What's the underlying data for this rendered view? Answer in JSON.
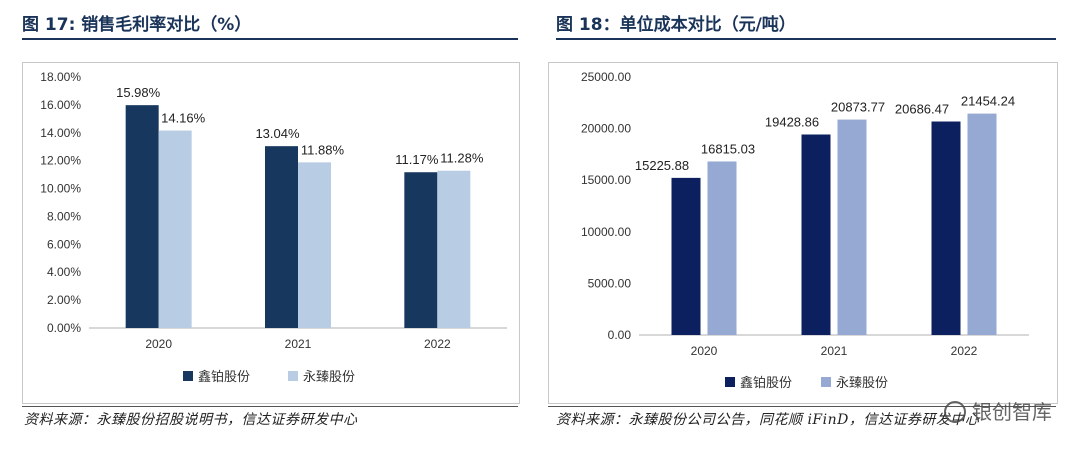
{
  "left": {
    "title": "图 17: 销售毛利率对比（%）",
    "source": "资料来源：永臻股份招股说明书，信达证券研发中心",
    "chart_data": {
      "type": "bar",
      "title": "",
      "categories": [
        "2020",
        "2021",
        "2022"
      ],
      "series": [
        {
          "name": "鑫铂股份",
          "values": [
            15.98,
            13.04,
            11.17
          ],
          "labels": [
            "15.98%",
            "13.04%",
            "11.17%"
          ],
          "color": "#17375e"
        },
        {
          "name": "永臻股份",
          "values": [
            14.16,
            11.88,
            11.28
          ],
          "labels": [
            "14.16%",
            "11.88%",
            "11.28%"
          ],
          "color": "#b8cce4"
        }
      ],
      "ylim": [
        0,
        18
      ],
      "yticks": [
        0,
        2,
        4,
        6,
        8,
        10,
        12,
        14,
        16,
        18
      ],
      "ytick_labels": [
        "0.00%",
        "2.00%",
        "4.00%",
        "6.00%",
        "8.00%",
        "10.00%",
        "12.00%",
        "14.00%",
        "16.00%",
        "18.00%"
      ],
      "xlabel": "",
      "ylabel": "",
      "grid": false,
      "legend": "bottom"
    }
  },
  "right": {
    "title": "图 18：单位成本对比（元/吨）",
    "source": "资料来源：永臻股份公司公告，同花顺 iFinD，信达证券研发中心",
    "chart_data": {
      "type": "bar",
      "title": "",
      "categories": [
        "2020",
        "2021",
        "2022"
      ],
      "series": [
        {
          "name": "鑫铂股份",
          "values": [
            15225.88,
            19428.86,
            20686.47
          ],
          "labels": [
            "15225.88",
            "19428.86",
            "20686.47"
          ],
          "color": "#0c1f5e"
        },
        {
          "name": "永臻股份",
          "values": [
            16815.03,
            20873.77,
            21454.24
          ],
          "labels": [
            "16815.03",
            "20873.77",
            "21454.24"
          ],
          "color": "#95a9d2"
        }
      ],
      "ylim": [
        0,
        25000
      ],
      "yticks": [
        0,
        5000,
        10000,
        15000,
        20000,
        25000
      ],
      "ytick_labels": [
        "0.00",
        "5000.00",
        "10000.00",
        "15000.00",
        "20000.00",
        "25000.00"
      ],
      "xlabel": "",
      "ylabel": "",
      "grid": false,
      "legend": "bottom"
    }
  },
  "watermark": "银创智库"
}
